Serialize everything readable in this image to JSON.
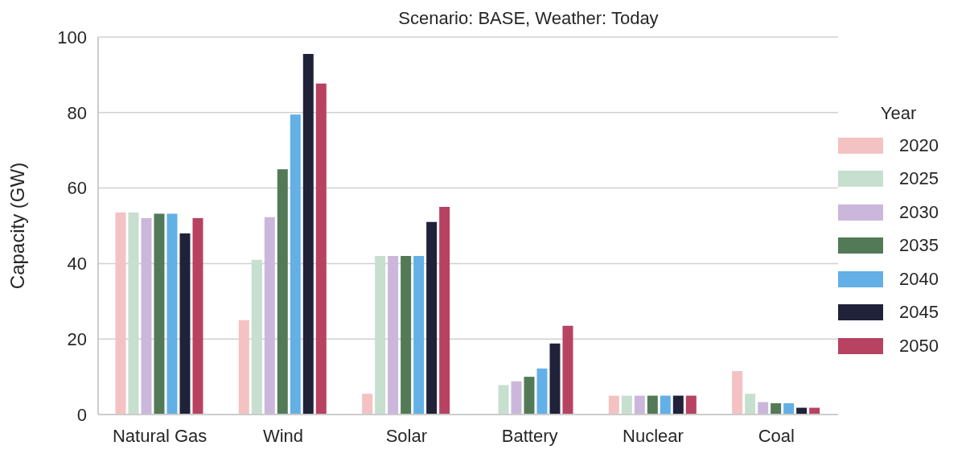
{
  "chart_data": {
    "type": "bar",
    "title": "Scenario: BASE, Weather: Today",
    "ylabel": "Capacity (GW)",
    "legend_title": "Year",
    "categories": [
      "Natural Gas",
      "Wind",
      "Solar",
      "Battery",
      "Nuclear",
      "Coal"
    ],
    "series": [
      {
        "name": "2020",
        "color": "#f4c2c2",
        "values": [
          53.5,
          25,
          5.5,
          0,
          5,
          11.5
        ]
      },
      {
        "name": "2025",
        "color": "#c6dfcf",
        "values": [
          53.5,
          41,
          42,
          7.8,
          5,
          5.5
        ]
      },
      {
        "name": "2030",
        "color": "#cbb7dc",
        "values": [
          52,
          52.3,
          42,
          8.8,
          5,
          3.3
        ]
      },
      {
        "name": "2035",
        "color": "#527a56",
        "values": [
          53.2,
          65,
          42,
          10,
          5,
          3
        ]
      },
      {
        "name": "2040",
        "color": "#62b0e6",
        "values": [
          53.2,
          79.5,
          42,
          12.2,
          5,
          3
        ]
      },
      {
        "name": "2045",
        "color": "#202239",
        "values": [
          48,
          95.5,
          51,
          18.8,
          5,
          1.8
        ]
      },
      {
        "name": "2050",
        "color": "#b84262",
        "values": [
          52,
          87.7,
          55,
          23.5,
          5,
          1.8
        ]
      }
    ],
    "ylim": [
      0,
      100
    ],
    "yticks": [
      0,
      20,
      40,
      60,
      80,
      100
    ],
    "grid": "y",
    "legend": "right"
  }
}
